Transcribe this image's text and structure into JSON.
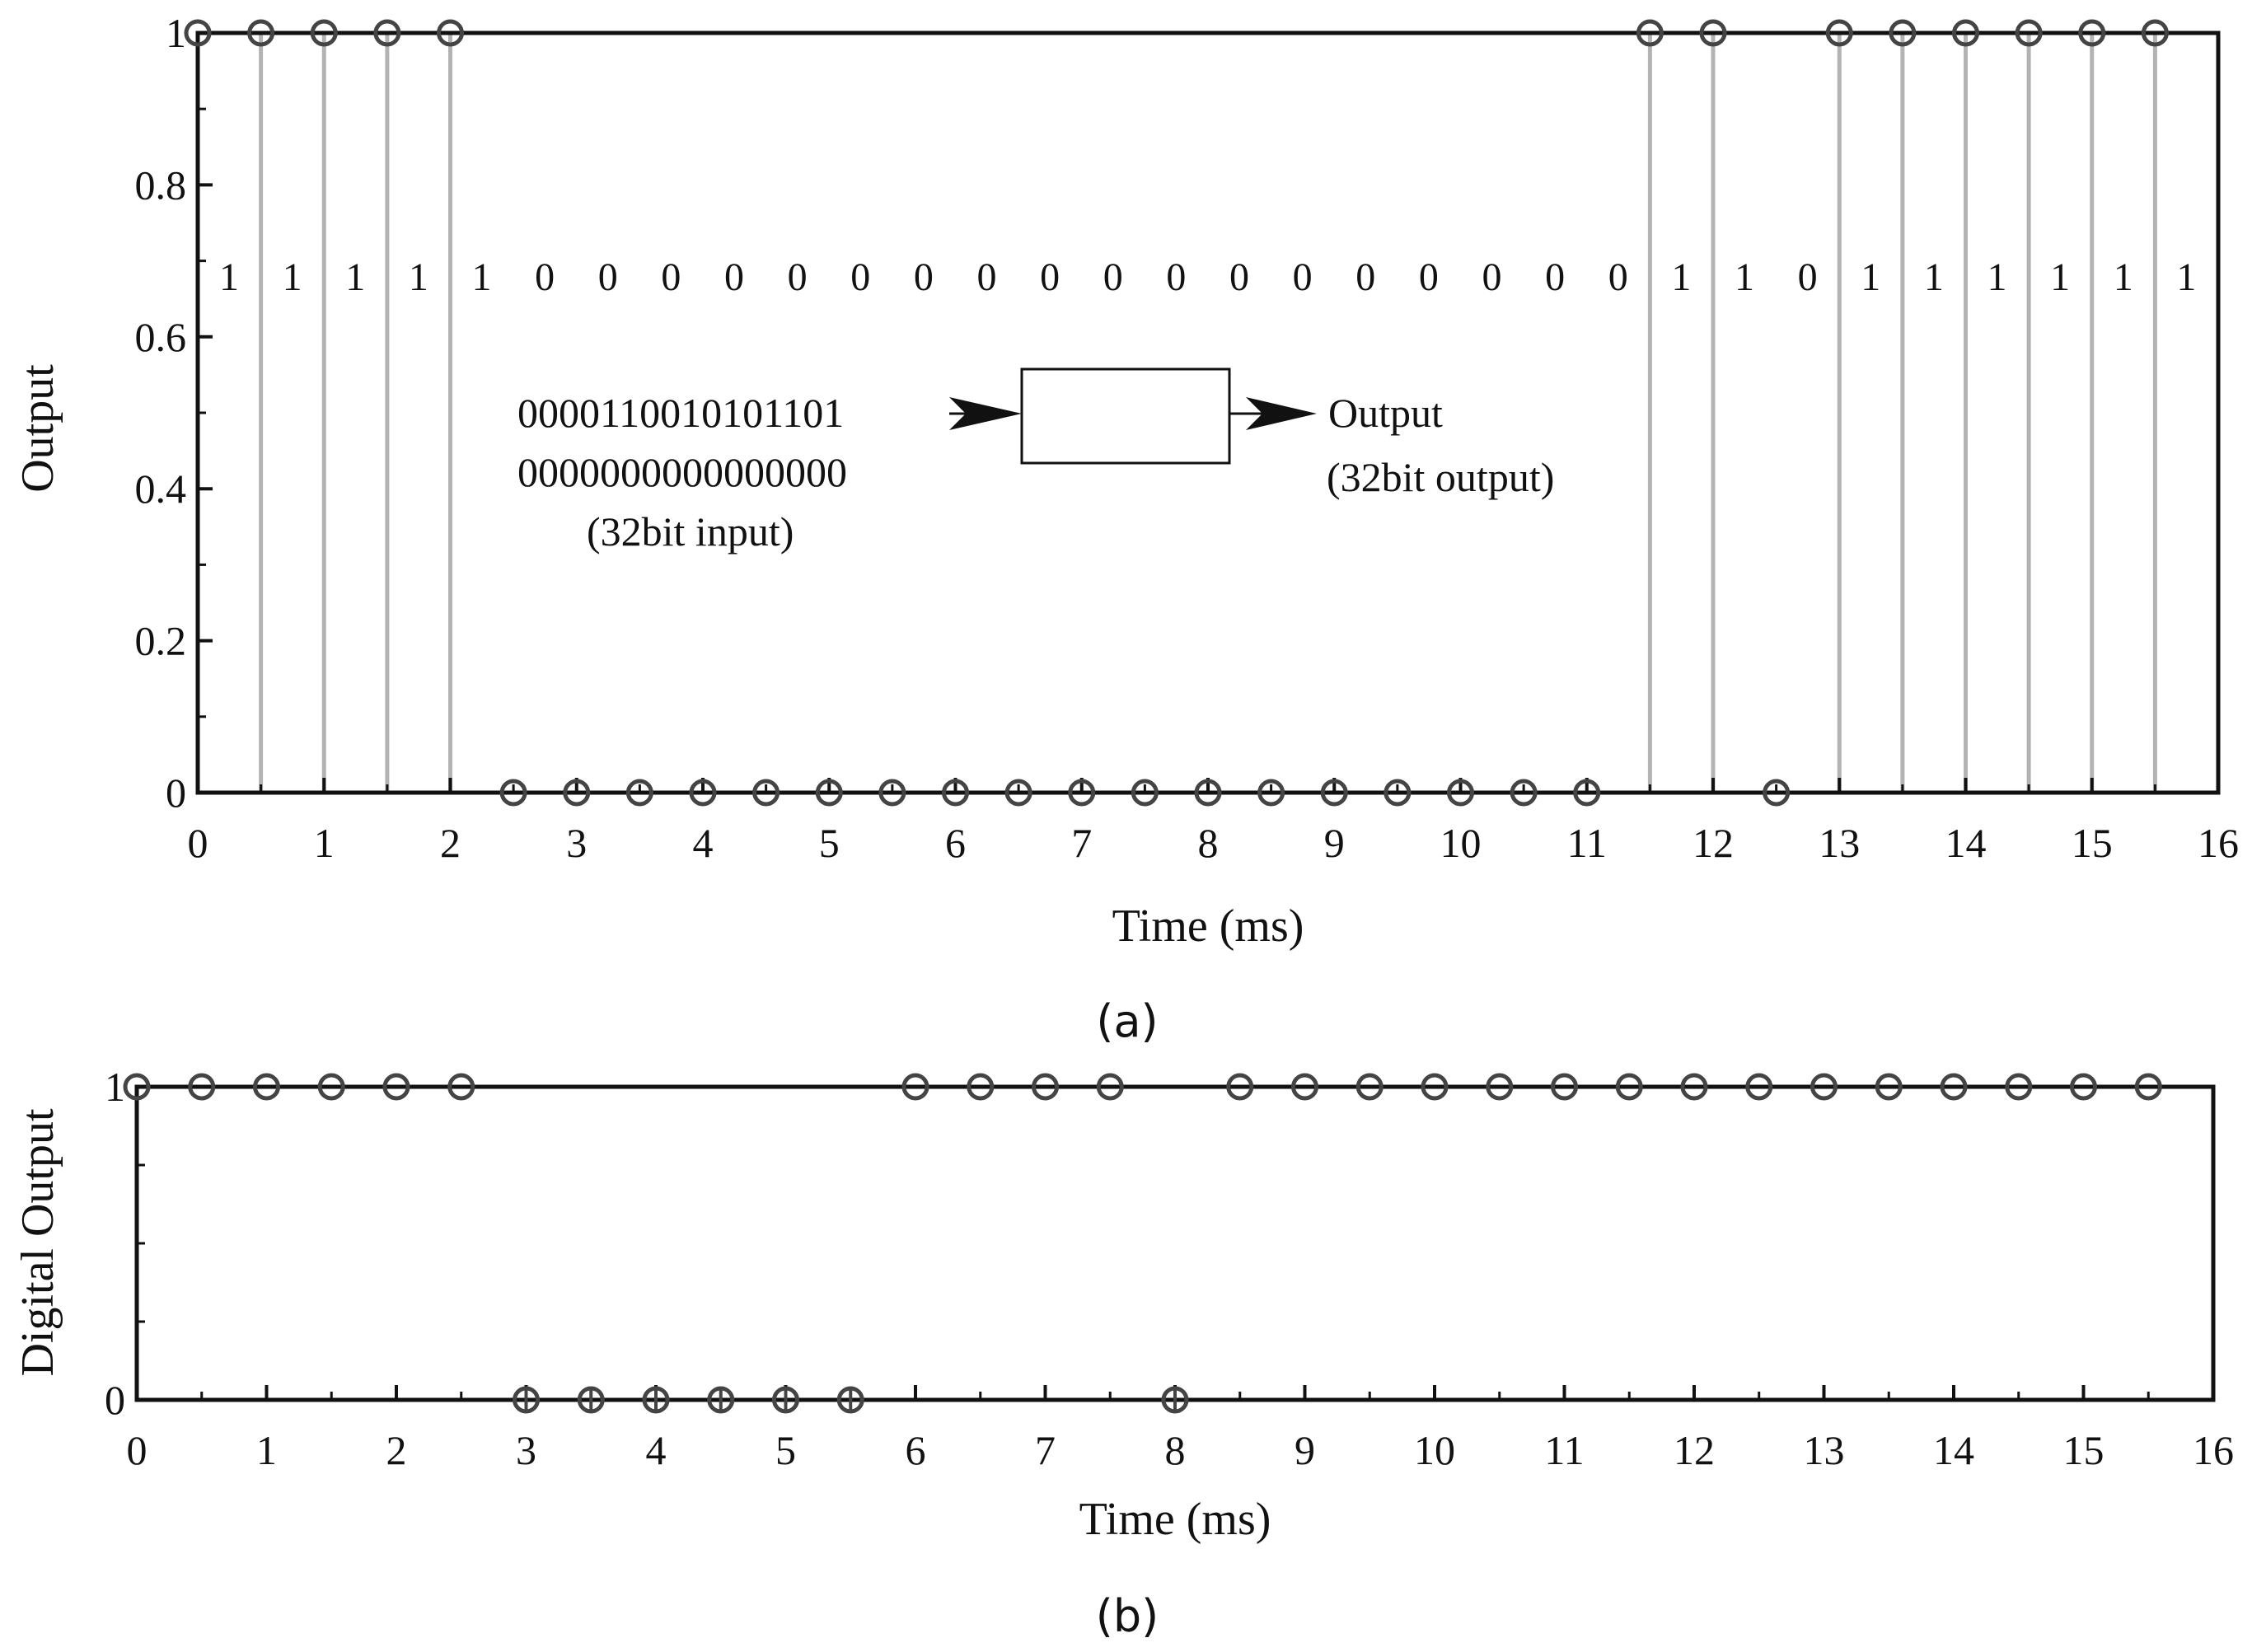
{
  "chart_data": [
    {
      "type": "scatter",
      "panel_caption": "(a)",
      "xlabel": "Time (ms)",
      "ylabel": "Output",
      "xlim": [
        0,
        16
      ],
      "ylim": [
        0,
        1
      ],
      "x_ticks": [
        "0",
        "1",
        "2",
        "3",
        "4",
        "5",
        "6",
        "7",
        "8",
        "9",
        "10",
        "11",
        "12",
        "13",
        "14",
        "15",
        "16"
      ],
      "y_ticks": [
        "0",
        "0.2",
        "0.4",
        "0.6",
        "0.8",
        "1"
      ],
      "y_tick_values": [
        0,
        0.2,
        0.4,
        0.6,
        0.8,
        1
      ],
      "style": "stem",
      "grid": false,
      "x": [
        0,
        0.5,
        1,
        1.5,
        2,
        2.5,
        3,
        3.5,
        4,
        4.5,
        5,
        5.5,
        6,
        6.5,
        7,
        7.5,
        8,
        8.5,
        9,
        9.5,
        10,
        10.5,
        11,
        11.5,
        12,
        12.5,
        13,
        13.5,
        14,
        14.5,
        15,
        15.5
      ],
      "y": [
        1,
        1,
        1,
        1,
        1,
        0,
        0,
        0,
        0,
        0,
        0,
        0,
        0,
        0,
        0,
        0,
        0,
        0,
        0,
        0,
        0,
        0,
        0,
        1,
        1,
        0,
        1,
        1,
        1,
        1,
        1,
        1
      ],
      "bit_labels": [
        "1",
        "1",
        "1",
        "1",
        "1",
        "0",
        "0",
        "0",
        "0",
        "0",
        "0",
        "0",
        "0",
        "0",
        "0",
        "0",
        "0",
        "0",
        "0",
        "0",
        "0",
        "0",
        "0",
        "1",
        "1",
        "0",
        "1",
        "1",
        "1",
        "1",
        "1",
        "1"
      ],
      "annotation": {
        "input_line1": "0000110010101101",
        "input_line2": "0000000000000000",
        "input_caption": "(32bit input)",
        "output_label": "Output",
        "output_caption": "(32bit output)"
      },
      "colors": {
        "marker": "#444444",
        "stem": "#b3b3b3",
        "axis": "#111111"
      }
    },
    {
      "type": "scatter",
      "panel_caption": "(b)",
      "xlabel": "Time (ms)",
      "ylabel": "Digital Output",
      "xlim": [
        0,
        16
      ],
      "ylim": [
        0,
        1
      ],
      "x_ticks": [
        "0",
        "1",
        "2",
        "3",
        "4",
        "5",
        "6",
        "7",
        "8",
        "9",
        "10",
        "11",
        "12",
        "13",
        "14",
        "15",
        "16"
      ],
      "y_ticks": [
        "0",
        "1"
      ],
      "y_tick_values": [
        0,
        1
      ],
      "grid": false,
      "x": [
        0,
        0.5,
        1,
        1.5,
        2,
        2.5,
        3,
        3.5,
        4,
        4.5,
        5,
        5.5,
        6,
        6.5,
        7,
        7.5,
        8,
        8.5,
        9,
        9.5,
        10,
        10.5,
        11,
        11.5,
        12,
        12.5,
        13,
        13.5,
        14,
        14.5,
        15,
        15.5
      ],
      "y": [
        1,
        1,
        1,
        1,
        1,
        1,
        0,
        0,
        0,
        0,
        0,
        0,
        1,
        1,
        1,
        1,
        0,
        1,
        1,
        1,
        1,
        1,
        1,
        1,
        1,
        1,
        1,
        1,
        1,
        1,
        1,
        1
      ],
      "colors": {
        "marker": "#444444",
        "axis": "#111111"
      }
    }
  ]
}
